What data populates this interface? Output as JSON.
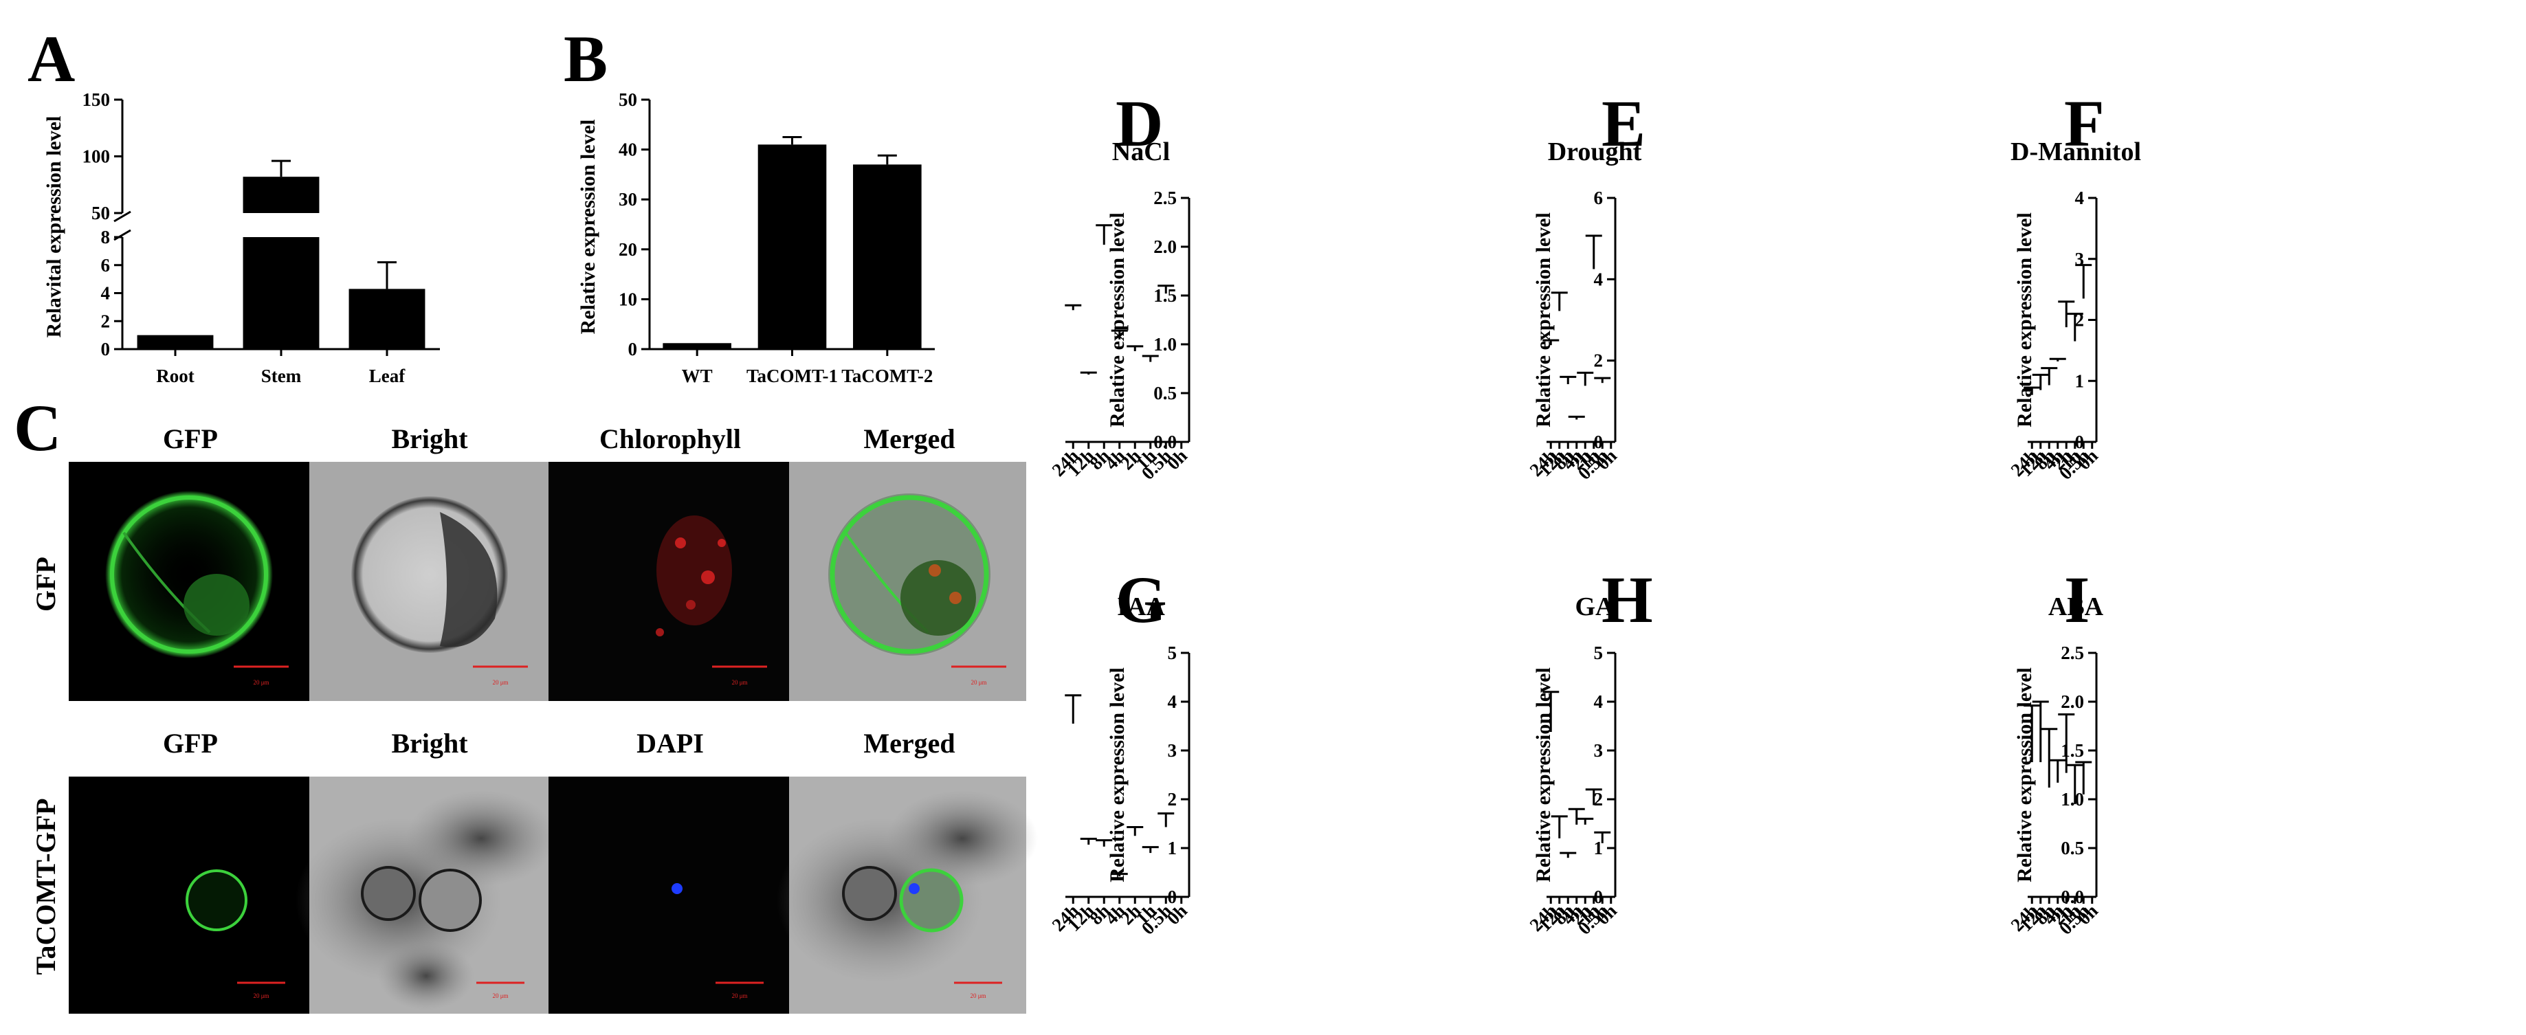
{
  "figure": {
    "colors": {
      "bar": "#000000",
      "axis": "#000000",
      "scale_bar": "#d22222",
      "gfp": "#3cd23c",
      "chloro": "#c41e1e",
      "dapi": "#1e3cff"
    }
  },
  "panels": {
    "A": {
      "letter": "A",
      "ylabel": "Relavital expression level",
      "categories": [
        "Root",
        "Stem",
        "Leaf"
      ],
      "lower_ticks": [
        "0",
        "2",
        "4",
        "6",
        "8"
      ],
      "upper_ticks": [
        "50",
        "100",
        "150"
      ]
    },
    "B": {
      "letter": "B",
      "ylabel": "Relative expression level",
      "categories": [
        "WT",
        "TaCOMT-1",
        "TaCOMT-2"
      ],
      "yticks": [
        "0",
        "10",
        "20",
        "30",
        "40",
        "50"
      ]
    },
    "C": {
      "letter": "C",
      "row1": {
        "label": "GFP",
        "cols": [
          "GFP",
          "Bright",
          "Chlorophyll",
          "Merged"
        ]
      },
      "row2": {
        "label": "TaCOMT-GFP",
        "cols": [
          "GFP",
          "Bright",
          "DAPI",
          "Merged"
        ]
      },
      "scale_text": "20 μm"
    }
  },
  "chart_data": [
    {
      "id": "A",
      "type": "bar",
      "title": "",
      "xlabel": "",
      "ylabel": "Relavital expression level",
      "categories": [
        "Root",
        "Stem",
        "Leaf"
      ],
      "values": [
        1.0,
        82,
        4.3
      ],
      "errors": [
        0,
        14,
        1.9
      ],
      "broken_axis": {
        "lower": [
          0,
          8
        ],
        "upper": [
          50,
          150
        ]
      }
    },
    {
      "id": "B",
      "type": "bar",
      "title": "",
      "xlabel": "",
      "ylabel": "Relative expression level",
      "categories": [
        "WT",
        "TaCOMT-1",
        "TaCOMT-2"
      ],
      "values": [
        1.2,
        41,
        37
      ],
      "errors": [
        0,
        1.5,
        1.8
      ],
      "ylim": [
        0,
        50
      ]
    },
    {
      "id": "D",
      "type": "bar",
      "title": "NaCl",
      "ylabel": "Relative expression level",
      "categories": [
        "0h",
        "0.5h",
        "1h",
        "2h",
        "4h",
        "8h",
        "12h",
        "24h"
      ],
      "values": [
        1.0,
        1.52,
        0.82,
        0.93,
        1.05,
        2.02,
        0.69,
        1.35
      ],
      "errors": [
        0,
        0.08,
        0.06,
        0.05,
        0.09,
        0.2,
        0.02,
        0.05
      ],
      "ylim": [
        0,
        2.5
      ],
      "yticks": [
        "0.0",
        "0.5",
        "1.0",
        "1.5",
        "2.0",
        "2.5"
      ]
    },
    {
      "id": "E",
      "type": "bar",
      "title": "Drought",
      "ylabel": "Relative expression level",
      "categories": [
        "0h",
        "0.5h",
        "1h",
        "2h",
        "4h",
        "8h",
        "12h",
        "24h"
      ],
      "values": [
        1.0,
        1.45,
        4.25,
        1.38,
        0.55,
        1.42,
        3.22,
        2.38
      ],
      "errors": [
        0,
        0.12,
        0.82,
        0.32,
        0.07,
        0.18,
        0.45,
        0.12
      ],
      "ylim": [
        0,
        6
      ],
      "yticks": [
        "0",
        "2",
        "4",
        "6"
      ]
    },
    {
      "id": "F",
      "type": "bar",
      "title": "D-Mannitol",
      "ylabel": "Relative expression level",
      "categories": [
        "0h",
        "0.5h",
        "1h",
        "2h",
        "4h",
        "8h",
        "12h",
        "24h"
      ],
      "values": [
        1.0,
        2.35,
        1.65,
        1.88,
        1.32,
        0.93,
        0.85,
        0.77
      ],
      "errors": [
        0,
        0.55,
        0.45,
        0.42,
        0.04,
        0.28,
        0.25,
        0.12
      ],
      "ylim": [
        0,
        4
      ],
      "yticks": [
        "0",
        "1",
        "2",
        "3",
        "4"
      ]
    },
    {
      "id": "G",
      "type": "bar",
      "title": "IAA",
      "ylabel": "Relative expression level",
      "categories": [
        "0h",
        "0.5h",
        "1h",
        "2h",
        "4h",
        "8h",
        "12h",
        "24h"
      ],
      "values": [
        1.0,
        1.43,
        0.9,
        1.25,
        0.42,
        1.03,
        1.07,
        3.55
      ],
      "errors": [
        0,
        0.28,
        0.12,
        0.18,
        0.05,
        0.13,
        0.12,
        0.58
      ],
      "ylim": [
        0,
        5
      ],
      "yticks": [
        "0",
        "1",
        "2",
        "3",
        "4",
        "5"
      ]
    },
    {
      "id": "H",
      "type": "bar",
      "title": "GA",
      "ylabel": "Relative expression level",
      "categories": [
        "0h",
        "0.5h",
        "1h",
        "2h",
        "4h",
        "8h",
        "12h",
        "24h"
      ],
      "values": [
        1.0,
        1.1,
        1.88,
        1.48,
        1.48,
        0.8,
        1.2,
        3.38
      ],
      "errors": [
        0,
        0.22,
        0.32,
        0.12,
        0.32,
        0.1,
        0.45,
        0.82
      ],
      "ylim": [
        0,
        5
      ],
      "yticks": [
        "0",
        "1",
        "2",
        "3",
        "4",
        "5"
      ]
    },
    {
      "id": "I",
      "type": "bar",
      "title": "ABA",
      "ylabel": "Relative expression level",
      "categories": [
        "0h",
        "0.5h",
        "1h",
        "2h",
        "4h",
        "8h",
        "12h",
        "24h"
      ],
      "values": [
        1.0,
        1.05,
        0.95,
        1.27,
        1.17,
        1.12,
        1.38,
        1.38
      ],
      "errors": [
        0,
        0.33,
        0.4,
        0.6,
        0.23,
        0.6,
        0.62,
        0.58
      ],
      "ylim": [
        0,
        2.5
      ],
      "yticks": [
        "0.0",
        "0.5",
        "1.0",
        "1.5",
        "2.0",
        "2.5"
      ]
    }
  ]
}
